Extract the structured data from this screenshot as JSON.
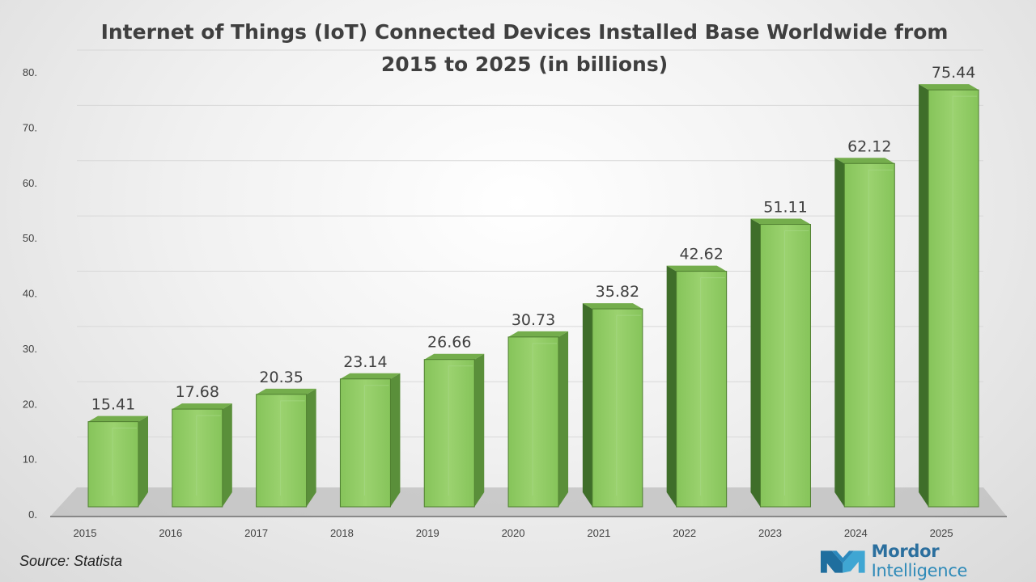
{
  "chart_data": {
    "type": "bar",
    "title": "Internet of Things (IoT) Connected Devices Installed Base Worldwide from 2015 to 2025 (in billions)",
    "categories": [
      "2015",
      "2016",
      "2017",
      "2018",
      "2019",
      "2020",
      "2021",
      "2022",
      "2023",
      "2024",
      "2025"
    ],
    "values": [
      15.41,
      17.68,
      20.35,
      23.14,
      26.66,
      30.73,
      35.82,
      42.62,
      51.11,
      62.12,
      75.44
    ],
    "value_labels": [
      "15.41",
      "17.68",
      "20.35",
      "23.14",
      "26.66",
      "30.73",
      "35.82",
      "42.62",
      "51.11",
      "62.12",
      "75.44"
    ],
    "ylim": [
      0,
      80
    ],
    "yticks": [
      "0.",
      "10.",
      "20.",
      "30.",
      "40.",
      "50.",
      "60.",
      "70.",
      "80."
    ],
    "xlabel": "",
    "ylabel": "",
    "grid": true,
    "legend": "none",
    "style": "3d-column",
    "colors": {
      "bar_front": "#8fcc63",
      "bar_side": "#5a8f3a",
      "bar_top": "#74ad4c",
      "bar_edge": "#4f7f30",
      "label": "#404040"
    }
  },
  "footer": {
    "source": "Source: Statista",
    "brand_strong": "Mordor",
    "brand_light": " Intelligence"
  }
}
